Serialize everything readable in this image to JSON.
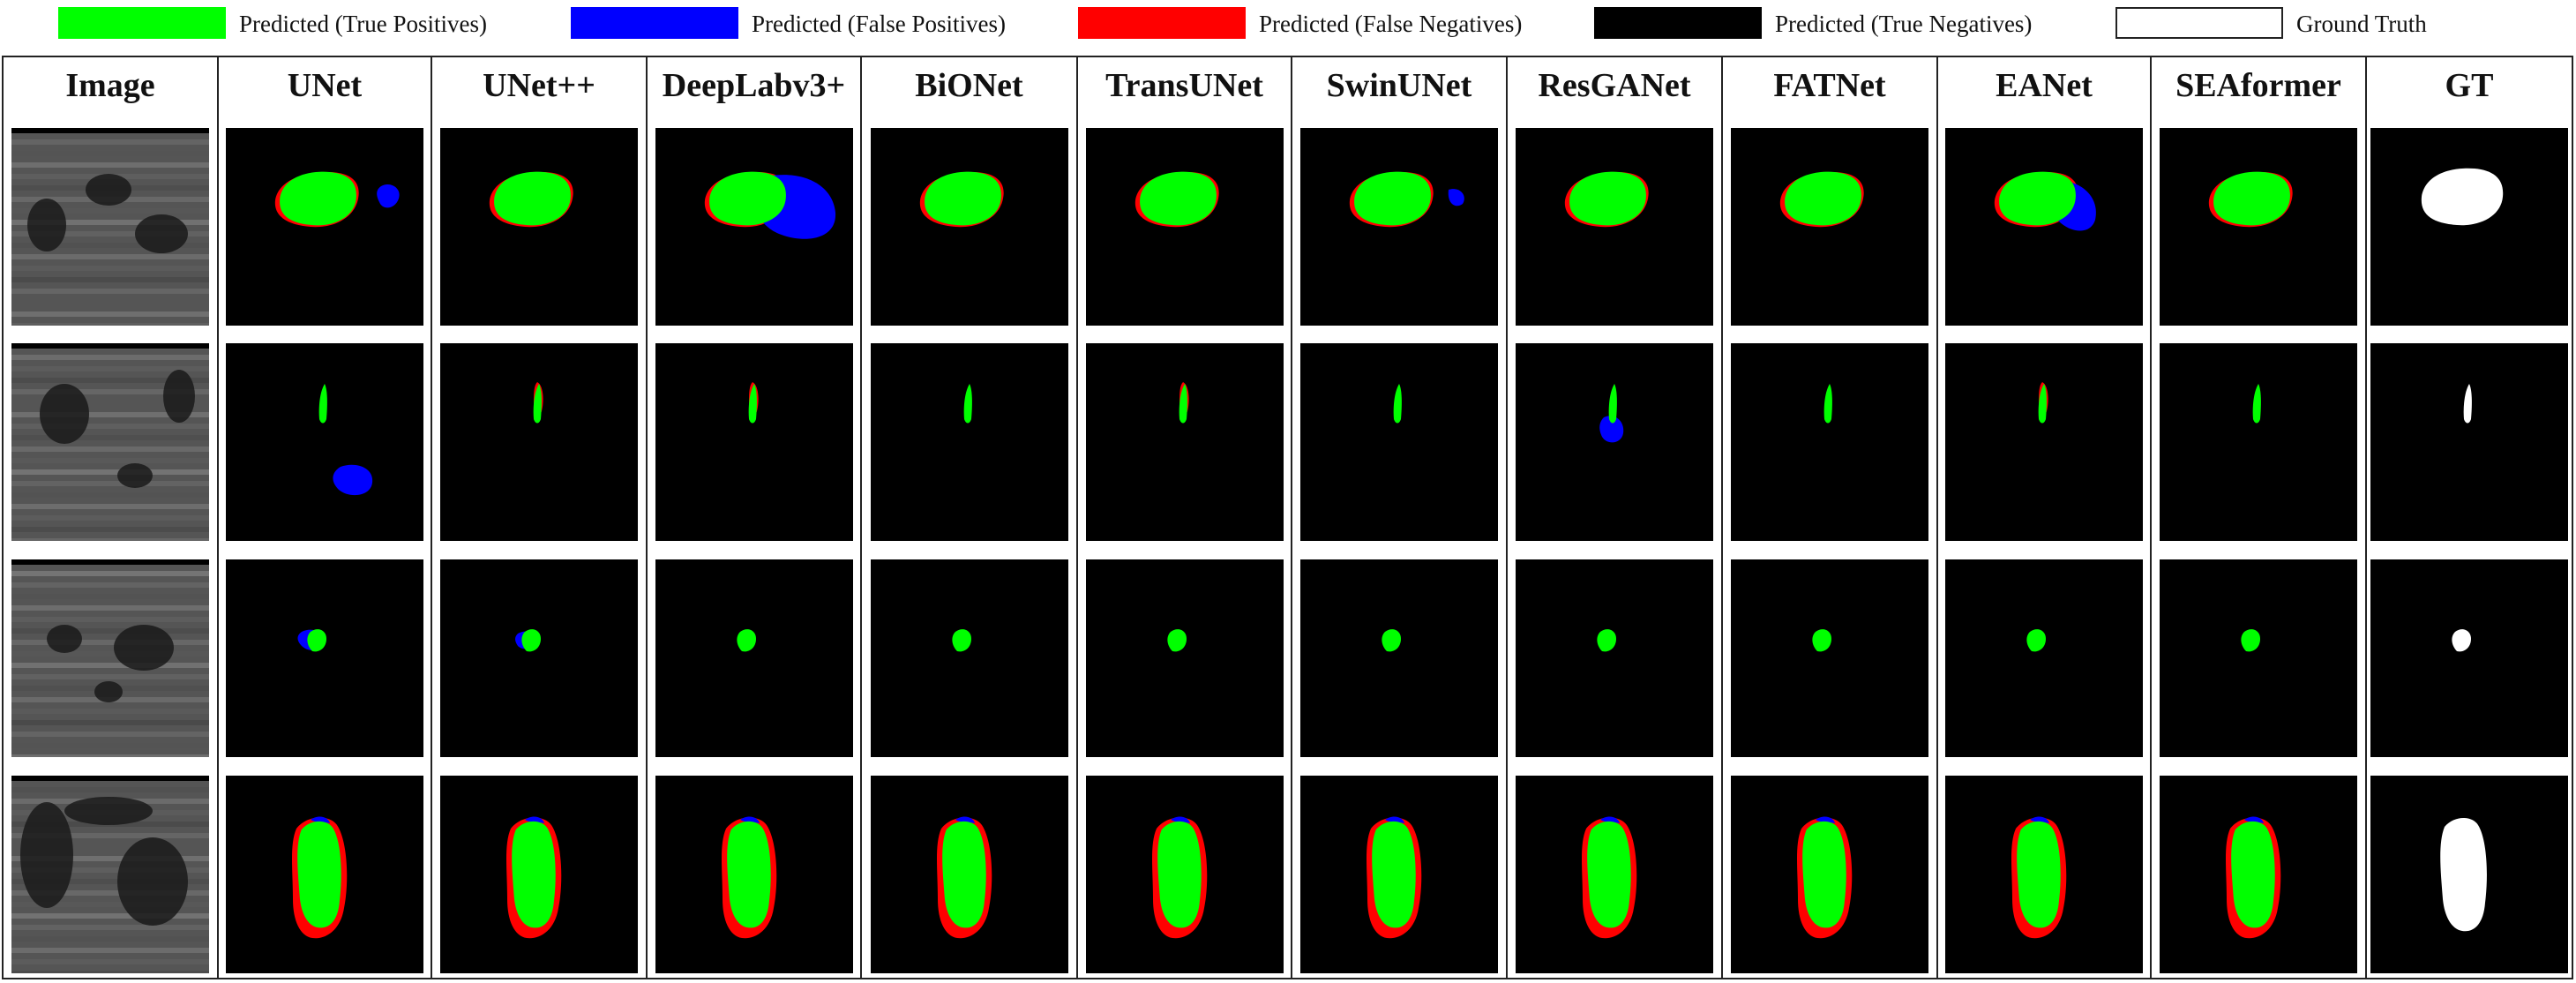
{
  "legend": [
    {
      "label": "Predicted (True Positives)",
      "color": "#00ff00"
    },
    {
      "label": "Predicted (False Positives)",
      "color": "#0000ff"
    },
    {
      "label": "Predicted (False Negatives)",
      "color": "#ff0000"
    },
    {
      "label": "Predicted (True Negatives)",
      "color": "#000000"
    },
    {
      "label": "Ground Truth",
      "color": "#ffffff"
    }
  ],
  "columns": [
    {
      "label": "Image"
    },
    {
      "label": "UNet"
    },
    {
      "label": "UNet++"
    },
    {
      "label": "DeepLabv3+"
    },
    {
      "label": "BiONet"
    },
    {
      "label": "TransUNet"
    },
    {
      "label": "SwinUNet"
    },
    {
      "label": "ResGANet"
    },
    {
      "label": "FATNet"
    },
    {
      "label": "EANet"
    },
    {
      "label": "SEAformer"
    },
    {
      "label": "GT"
    }
  ],
  "colors": {
    "true_positive": "#00ff00",
    "false_positive": "#0000ff",
    "false_negative": "#ff0000",
    "true_negative": "#000000",
    "ground_truth": "#ffffff",
    "ultrasound_tissue": "#6e6e6e"
  }
}
